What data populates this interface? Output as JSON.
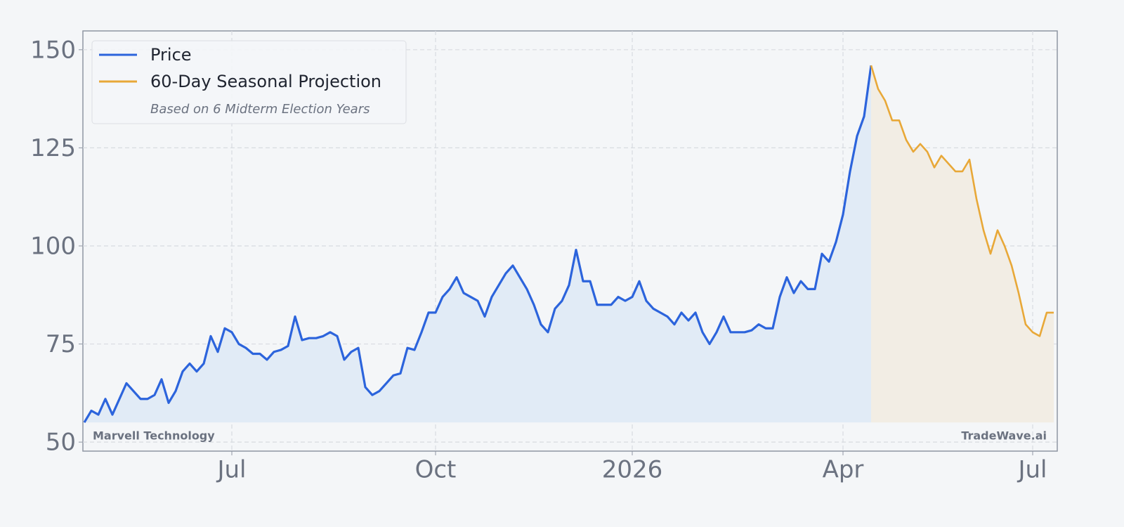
{
  "chart_data": {
    "type": "line",
    "categories": [
      null,
      null,
      null,
      null,
      null,
      null,
      null,
      null,
      null,
      null,
      null,
      null,
      null,
      null,
      null,
      null,
      null,
      null,
      null,
      null,
      null,
      "Jul",
      null,
      null,
      null,
      null,
      null,
      null,
      null,
      null,
      null,
      null,
      null,
      null,
      null,
      null,
      null,
      null,
      null,
      null,
      null,
      null,
      null,
      null,
      null,
      null,
      null,
      null,
      null,
      null,
      "Oct",
      null,
      null,
      null,
      null,
      null,
      null,
      null,
      null,
      null,
      null,
      null,
      null,
      null,
      null,
      null,
      null,
      null,
      null,
      null,
      null,
      null,
      null,
      null,
      null,
      null,
      null,
      null,
      "2026",
      null,
      null,
      null,
      null,
      null,
      null,
      null,
      null,
      null,
      null,
      null,
      null,
      null,
      null,
      null,
      null,
      null,
      null,
      null,
      null,
      null,
      null,
      null,
      null,
      null,
      null,
      null,
      null,
      null,
      "Apr",
      null,
      null,
      null,
      null,
      null,
      null,
      null,
      null,
      null,
      null,
      null,
      null,
      null,
      null,
      null,
      null,
      null,
      null,
      null,
      null,
      null,
      null,
      null,
      null,
      null,
      null,
      "Jul",
      null,
      null,
      null
    ],
    "series": [
      {
        "name": "Price",
        "color": "#2c64dc",
        "fill": "#e1ebf6",
        "values": [
          55,
          58,
          57,
          61,
          57,
          61,
          65,
          63,
          61,
          61,
          62,
          66,
          60,
          63,
          68,
          70,
          68,
          70,
          77,
          73,
          79,
          78,
          75,
          74,
          72.5,
          72.5,
          71,
          73,
          73.5,
          74.5,
          82,
          76,
          76.5,
          76.5,
          77,
          78,
          77,
          71,
          73,
          74,
          64,
          62,
          63,
          65,
          67,
          67.5,
          74,
          73.5,
          78,
          83,
          83,
          87,
          89,
          92,
          88,
          87,
          86,
          82,
          87,
          90,
          93,
          95,
          92,
          89,
          85,
          80,
          78,
          84,
          86,
          90,
          99,
          91,
          91,
          85,
          85,
          85,
          87,
          86,
          87,
          91,
          86,
          84,
          83,
          82,
          80,
          83,
          81,
          83,
          78,
          75,
          78,
          82,
          78,
          78,
          78,
          78.5,
          80,
          79,
          79,
          87,
          92,
          88,
          91,
          89,
          89,
          98,
          96,
          101,
          108,
          119,
          128,
          133,
          146,
          null,
          null,
          null,
          null,
          null,
          null,
          null,
          null,
          null,
          null,
          null,
          null,
          null,
          null,
          null,
          null,
          null,
          null,
          null,
          null,
          null,
          null,
          null,
          null,
          null,
          null
        ]
      },
      {
        "name": "60-Day Seasonal Projection",
        "note": "Based on 6 Midterm Election Years",
        "color": "#e8a838",
        "fill": "#f2ede4",
        "values": [
          null,
          null,
          null,
          null,
          null,
          null,
          null,
          null,
          null,
          null,
          null,
          null,
          null,
          null,
          null,
          null,
          null,
          null,
          null,
          null,
          null,
          null,
          null,
          null,
          null,
          null,
          null,
          null,
          null,
          null,
          null,
          null,
          null,
          null,
          null,
          null,
          null,
          null,
          null,
          null,
          null,
          null,
          null,
          null,
          null,
          null,
          null,
          null,
          null,
          null,
          null,
          null,
          null,
          null,
          null,
          null,
          null,
          null,
          null,
          null,
          null,
          null,
          null,
          null,
          null,
          null,
          null,
          null,
          null,
          null,
          null,
          null,
          null,
          null,
          null,
          null,
          null,
          null,
          null,
          null,
          null,
          null,
          null,
          null,
          null,
          null,
          null,
          null,
          null,
          null,
          null,
          null,
          null,
          null,
          null,
          null,
          null,
          null,
          null,
          null,
          null,
          null,
          null,
          null,
          null,
          null,
          null,
          null,
          null,
          null,
          null,
          null,
          146,
          140,
          137,
          132,
          132,
          127,
          124,
          126,
          124,
          120,
          123,
          121,
          119,
          119,
          122,
          112,
          104,
          98,
          104,
          100,
          95,
          88,
          80,
          78,
          77,
          83,
          83
        ]
      }
    ],
    "ylim": [
      47.7,
      154.8
    ],
    "yticks": [
      50,
      75,
      100,
      125,
      150
    ],
    "grid": true,
    "legend": "upper left",
    "watermark_left": "Marvell Technology",
    "watermark_right": "TradeWave.ai"
  }
}
